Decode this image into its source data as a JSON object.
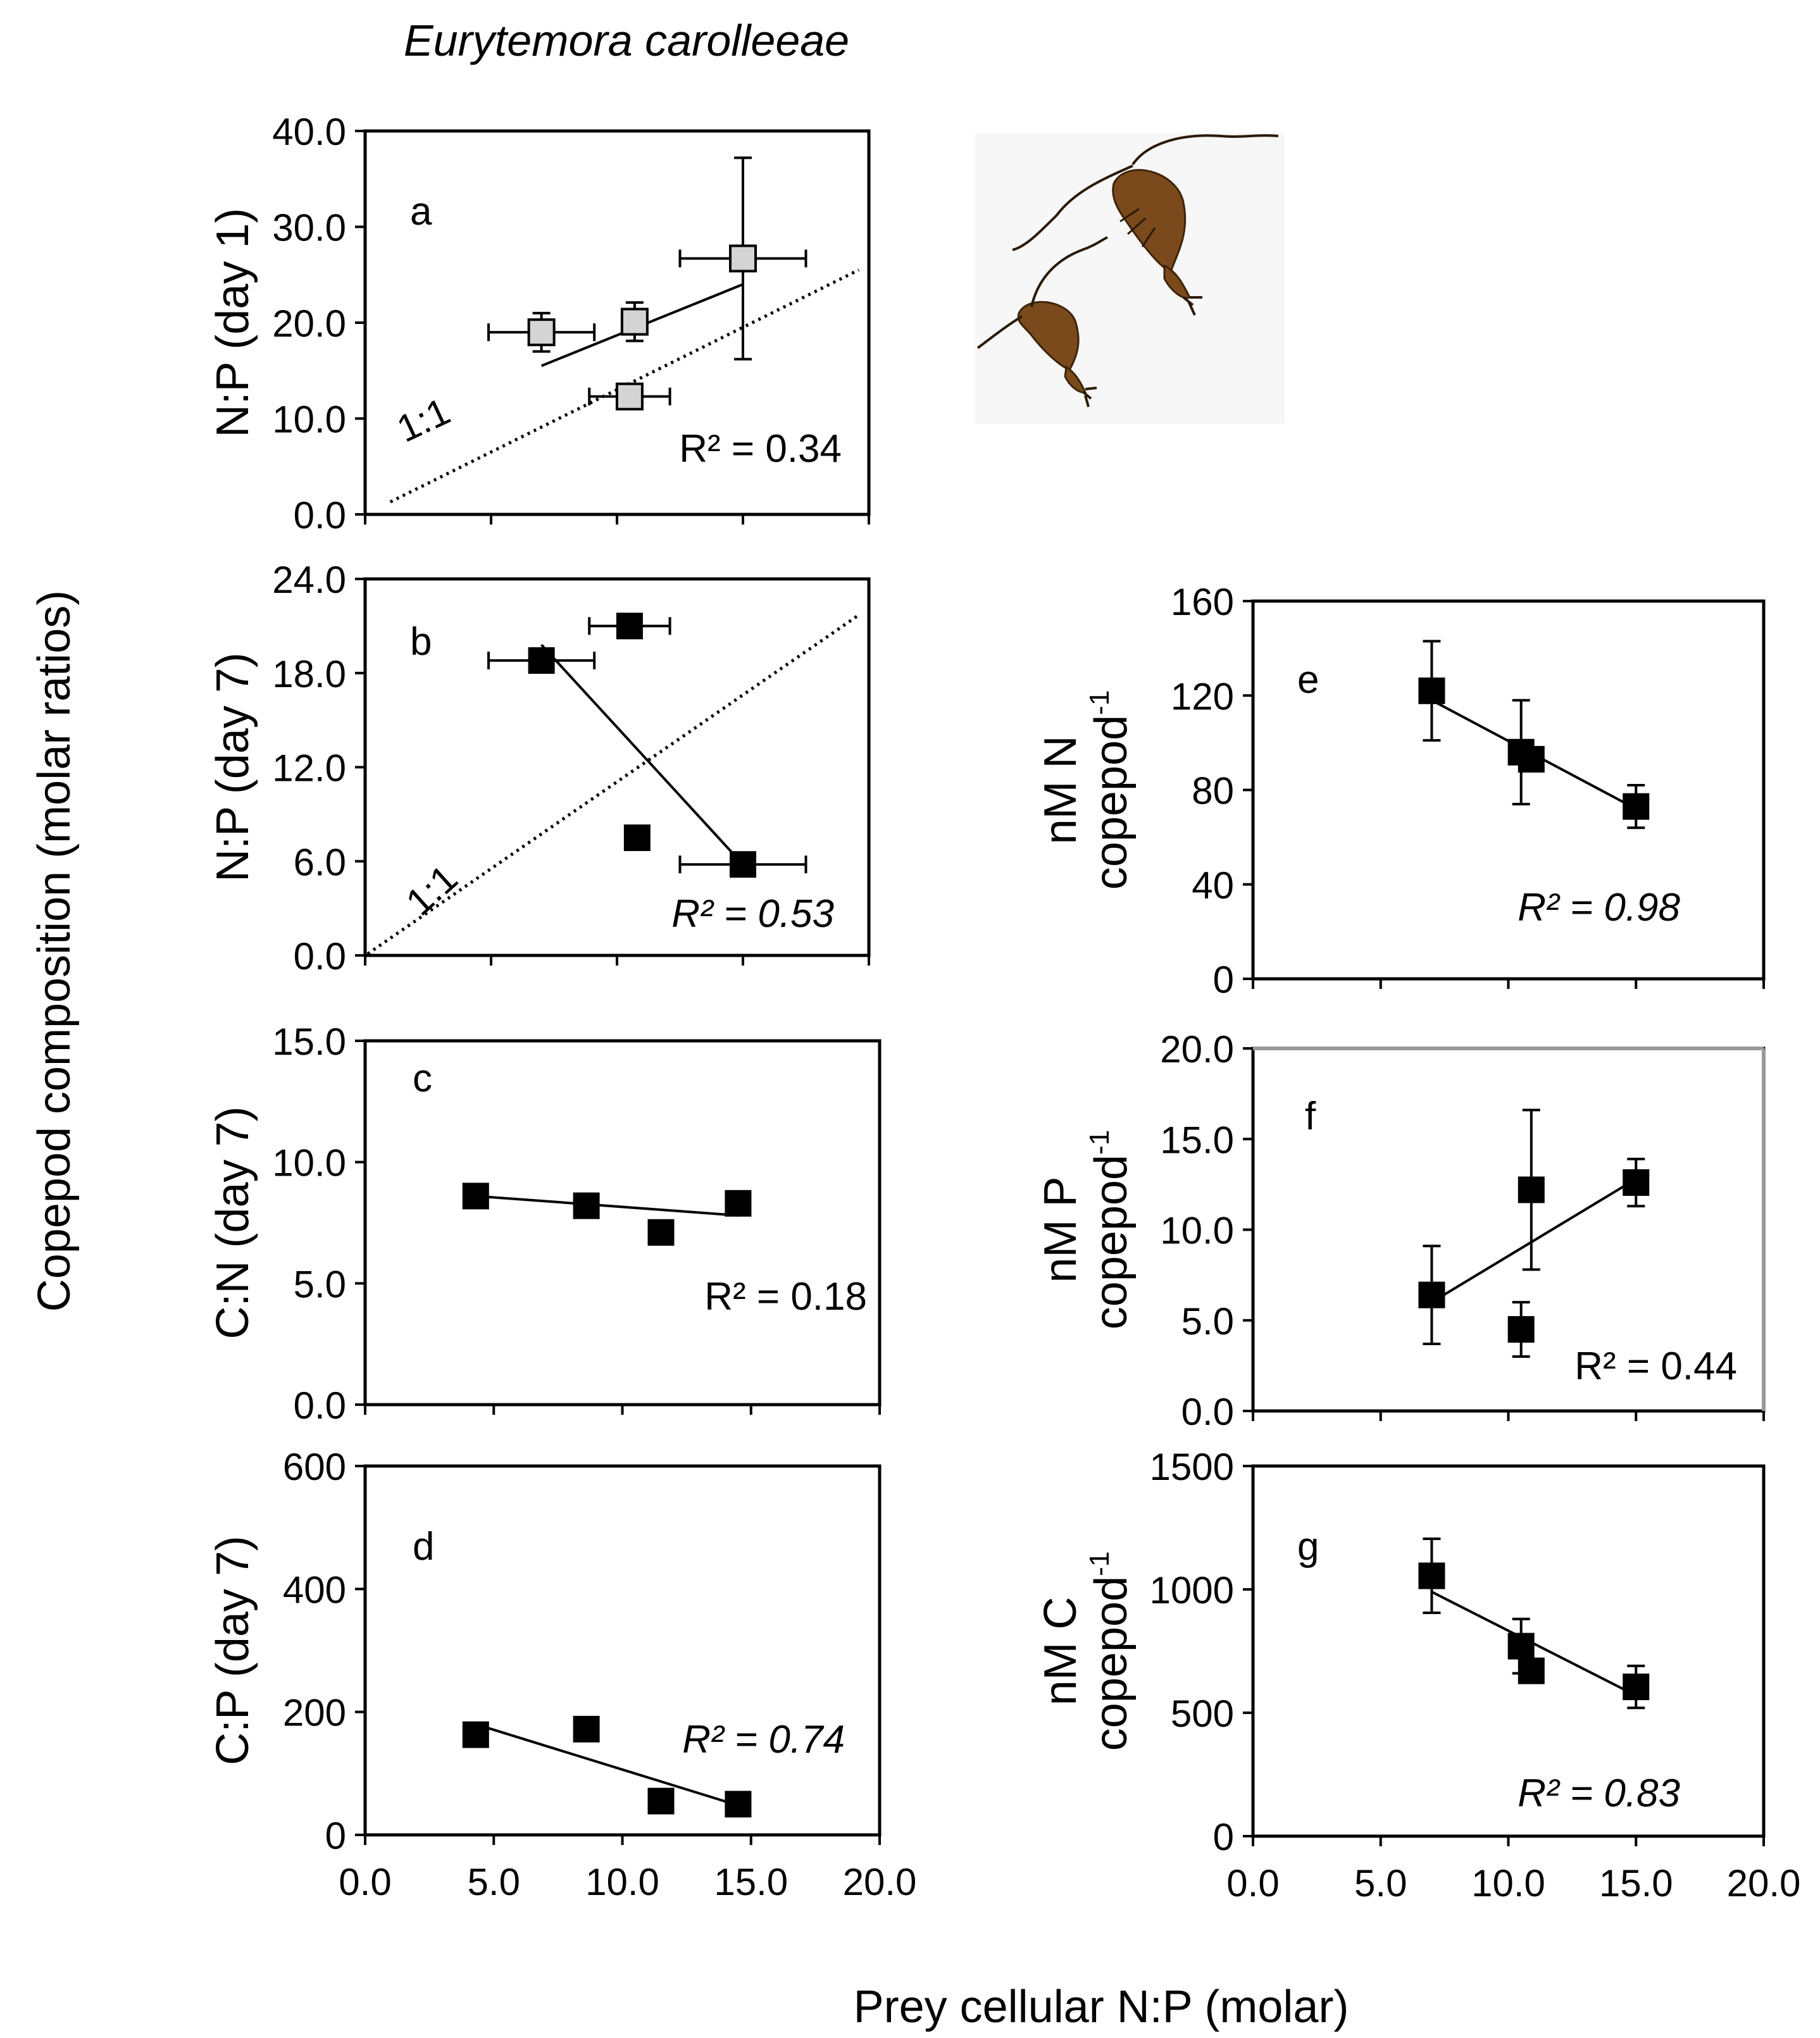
{
  "figure": {
    "species": "Eurytemora carolleeae",
    "left_axis_label": "Copepod composition (molar ratios)",
    "bottom_axis_label": "Prey cellular N:P (molar)",
    "illustration": "copepod-illustration"
  },
  "chart_data": [
    {
      "id": "a",
      "type": "scatter",
      "panel_label": "a",
      "ylabel": "N:P (day 1)",
      "xlim": [
        0,
        20
      ],
      "ylim": [
        0,
        40
      ],
      "yticks": [
        "0.0",
        "10.0",
        "20.0",
        "30.0",
        "40.0"
      ],
      "xticks": [],
      "xtick_values": [
        0,
        5,
        10,
        15,
        20
      ],
      "marker": "gray-square",
      "points": [
        {
          "x": 7.0,
          "y": 19.0,
          "xerr": 2.1,
          "yerr": 2.0
        },
        {
          "x": 10.5,
          "y": 12.3,
          "xerr": 1.6,
          "yerr": 0
        },
        {
          "x": 10.7,
          "y": 20.1,
          "xerr": 0,
          "yerr": 2.0
        },
        {
          "x": 15.0,
          "y": 26.7,
          "xerr": 2.5,
          "yerr": 10.5
        }
      ],
      "trendline": {
        "x": [
          7.0,
          15.0
        ],
        "y": [
          15.5,
          24.0
        ]
      },
      "one_to_one": {
        "x": [
          1.0,
          19.6
        ],
        "y": [
          1.3,
          25.5
        ],
        "label": "1:1"
      },
      "r2": "R² = 0.34",
      "r2_italic": false
    },
    {
      "id": "b",
      "type": "scatter",
      "panel_label": "b",
      "ylabel": "N:P (day 7)",
      "xlim": [
        0,
        20
      ],
      "ylim": [
        0,
        24
      ],
      "yticks": [
        "0.0",
        "6.0",
        "12.0",
        "18.0",
        "24.0"
      ],
      "xticks": [],
      "xtick_values": [
        0,
        5,
        10,
        15,
        20
      ],
      "marker": "black-square",
      "points": [
        {
          "x": 7.0,
          "y": 18.8,
          "xerr": 2.1,
          "yerr": 0
        },
        {
          "x": 10.5,
          "y": 21.0,
          "xerr": 1.6,
          "yerr": 0
        },
        {
          "x": 10.8,
          "y": 7.5,
          "xerr": 0,
          "yerr": 0
        },
        {
          "x": 15.0,
          "y": 5.8,
          "xerr": 2.5,
          "yerr": 0
        }
      ],
      "trendline": {
        "x": [
          7.0,
          15.0
        ],
        "y": [
          19.8,
          5.8
        ]
      },
      "one_to_one": {
        "x": [
          0.1,
          19.6
        ],
        "y": [
          0.1,
          21.7
        ],
        "label": "1:1"
      },
      "r2": "R² = 0.53",
      "r2_italic": true
    },
    {
      "id": "c",
      "type": "scatter",
      "panel_label": "c",
      "ylabel": "C:N (day 7)",
      "xlim": [
        0,
        20
      ],
      "ylim": [
        0,
        15
      ],
      "yticks": [
        "0.0",
        "5.0",
        "10.0",
        "15.0"
      ],
      "xticks": [],
      "xtick_values": [
        0,
        5,
        10,
        15,
        20
      ],
      "marker": "black-square",
      "points": [
        {
          "x": 4.3,
          "y": 8.6
        },
        {
          "x": 8.6,
          "y": 8.2
        },
        {
          "x": 11.5,
          "y": 7.1
        },
        {
          "x": 14.5,
          "y": 8.3
        }
      ],
      "trendline": {
        "x": [
          4.3,
          14.5
        ],
        "y": [
          8.6,
          7.8
        ]
      },
      "r2": "R² = 0.18",
      "r2_italic": false
    },
    {
      "id": "d",
      "type": "scatter",
      "panel_label": "d",
      "ylabel": "C:P (day 7)",
      "xlim": [
        0,
        20
      ],
      "ylim": [
        0,
        600
      ],
      "yticks": [
        "0",
        "200",
        "400",
        "600"
      ],
      "xticks": [
        "0.0",
        "5.0",
        "10.0",
        "15.0",
        "20.0"
      ],
      "xtick_values": [
        0,
        5,
        10,
        15,
        20
      ],
      "marker": "black-square",
      "points": [
        {
          "x": 4.3,
          "y": 163
        },
        {
          "x": 8.6,
          "y": 172
        },
        {
          "x": 11.5,
          "y": 55
        },
        {
          "x": 14.5,
          "y": 50
        }
      ],
      "trendline": {
        "x": [
          4.3,
          14.5
        ],
        "y": [
          180,
          48
        ]
      },
      "r2": "R² = 0.74",
      "r2_italic": true
    },
    {
      "id": "e",
      "type": "scatter",
      "panel_label": "e",
      "ylabel": "nM N",
      "ylabel2": "copepod",
      "ylabel_sup": "-1",
      "xlim": [
        0,
        20
      ],
      "ylim": [
        0,
        160
      ],
      "yticks": [
        "0",
        "40",
        "80",
        "120",
        "160"
      ],
      "xticks": [],
      "xtick_values": [
        0,
        5,
        10,
        15,
        20
      ],
      "marker": "black-square",
      "points": [
        {
          "x": 7.0,
          "y": 122,
          "xerr": 0,
          "yerr": 21
        },
        {
          "x": 10.5,
          "y": 96,
          "xerr": 0,
          "yerr": 22
        },
        {
          "x": 10.9,
          "y": 93,
          "xerr": 0,
          "yerr": 0
        },
        {
          "x": 15.0,
          "y": 73,
          "xerr": 0,
          "yerr": 9
        }
      ],
      "trendline": {
        "x": [
          7.0,
          15.0
        ],
        "y": [
          118,
          72
        ]
      },
      "r2": "R² = 0.98",
      "r2_italic": true
    },
    {
      "id": "f",
      "type": "scatter",
      "panel_label": "f",
      "ylabel": "nM P",
      "ylabel2": "copepod",
      "ylabel_sup": "-1",
      "xlim": [
        0,
        20
      ],
      "ylim": [
        0,
        20
      ],
      "yticks": [
        "0.0",
        "5.0",
        "10.0",
        "15.0",
        "20.0"
      ],
      "xticks": [],
      "xtick_values": [
        0,
        5,
        10,
        15,
        20
      ],
      "marker": "black-square",
      "points": [
        {
          "x": 7.0,
          "y": 6.4,
          "xerr": 0,
          "yerr": 2.7
        },
        {
          "x": 10.5,
          "y": 4.5,
          "xerr": 0,
          "yerr": 1.5
        },
        {
          "x": 10.9,
          "y": 12.2,
          "xerr": 0,
          "yerr": 4.4
        },
        {
          "x": 15.0,
          "y": 12.6,
          "xerr": 0,
          "yerr": 1.3
        }
      ],
      "trendline": {
        "x": [
          7.0,
          15.0
        ],
        "y": [
          6.0,
          12.8
        ]
      },
      "r2": "R² = 0.44",
      "r2_italic": false
    },
    {
      "id": "g",
      "type": "scatter",
      "panel_label": "g",
      "ylabel": "nM C",
      "ylabel2": "copepod",
      "ylabel_sup": "-1",
      "xlim": [
        0,
        20
      ],
      "ylim": [
        0,
        1500
      ],
      "yticks": [
        "0",
        "500",
        "1000",
        "1500"
      ],
      "xticks": [
        "0.0",
        "5.0",
        "10.0",
        "15.0",
        "20.0"
      ],
      "xtick_values": [
        0,
        5,
        10,
        15,
        20
      ],
      "marker": "black-square",
      "points": [
        {
          "x": 7.0,
          "y": 1055,
          "xerr": 0,
          "yerr": 150
        },
        {
          "x": 10.5,
          "y": 770,
          "xerr": 0,
          "yerr": 110
        },
        {
          "x": 10.9,
          "y": 670,
          "xerr": 0,
          "yerr": 0
        },
        {
          "x": 15.0,
          "y": 605,
          "xerr": 0,
          "yerr": 85
        }
      ],
      "trendline": {
        "x": [
          7.0,
          15.0
        ],
        "y": [
          990,
          570
        ]
      },
      "r2": "R² = 0.83",
      "r2_italic": true
    }
  ]
}
